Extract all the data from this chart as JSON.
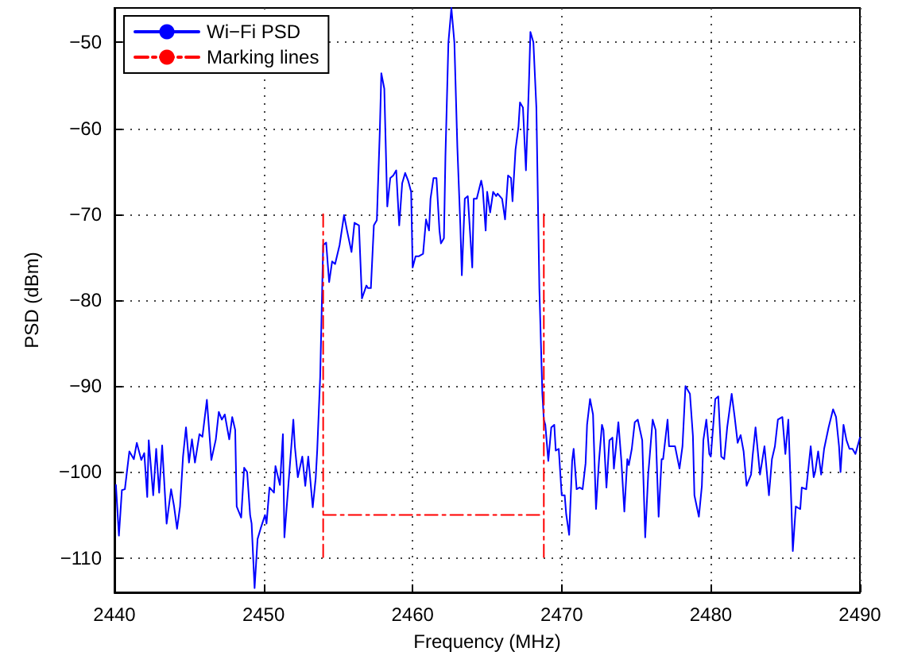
{
  "chart_data": {
    "type": "line",
    "xlabel": "Frequency (MHz)",
    "ylabel": "PSD (dBm)",
    "xlim": [
      2440,
      2490
    ],
    "ylim": [
      -114,
      -46
    ],
    "xticks": [
      2440,
      2450,
      2460,
      2470,
      2480,
      2490
    ],
    "yticks": [
      -110,
      -100,
      -90,
      -80,
      -70,
      -60,
      -50
    ],
    "grid": true,
    "legend": "top left",
    "marker": "none",
    "series": [
      {
        "name": "Wi−Fi PSD",
        "color": "#0000ff",
        "line_style": "solid",
        "x": [
          2440.1,
          2440.3,
          2440.5,
          2440.7,
          2441.0,
          2441.3,
          2441.5,
          2441.8,
          2442.0,
          2442.2,
          2442.3,
          2442.6,
          2442.8,
          2443.0,
          2443.2,
          2443.5,
          2443.8,
          2444.0,
          2444.2,
          2444.4,
          2444.6,
          2444.8,
          2445.0,
          2445.2,
          2445.4,
          2445.7,
          2445.9,
          2446.2,
          2446.5,
          2446.8,
          2447.0,
          2447.2,
          2447.4,
          2447.7,
          2447.9,
          2448.1,
          2448.2,
          2448.5,
          2448.7,
          2448.9,
          2449.1,
          2449.2,
          2449.4,
          2449.6,
          2449.8,
          2450.1,
          2450.2,
          2450.4,
          2450.7,
          2450.8,
          2451.1,
          2451.3,
          2451.4,
          2452.0,
          2452.1,
          2452.3,
          2452.6,
          2452.8,
          2453.0,
          2453.3,
          2453.5,
          2453.6,
          2453.8,
          2454.0,
          2454.2,
          2454.4,
          2454.6,
          2454.8,
          2455.1,
          2455.4,
          2455.6,
          2455.9,
          2456.1,
          2456.4,
          2456.6,
          2456.9,
          2457.0,
          2457.2,
          2457.4,
          2457.6,
          2457.8,
          2457.9,
          2458.1,
          2458.3,
          2458.5,
          2458.7,
          2458.9,
          2459.1,
          2459.3,
          2459.5,
          2459.7,
          2459.9,
          2460.0,
          2460.2,
          2460.4,
          2460.7,
          2460.9,
          2461.1,
          2461.2,
          2461.4,
          2461.6,
          2461.8,
          2461.9,
          2462.1,
          2462.2,
          2462.4,
          2462.6,
          2462.8,
          2463.0,
          2463.2,
          2463.3,
          2463.5,
          2463.7,
          2464.0,
          2464.1,
          2464.3,
          2464.6,
          2464.7,
          2464.9,
          2465.0,
          2465.2,
          2465.4,
          2465.6,
          2465.7,
          2466.0,
          2466.2,
          2466.4,
          2466.6,
          2466.7,
          2466.9,
          2467.1,
          2467.2,
          2467.4,
          2467.6,
          2467.8,
          2467.9,
          2468.1,
          2468.3,
          2468.5,
          2468.7,
          2468.8,
          2468.9,
          2469.1,
          2469.3,
          2469.5,
          2469.6,
          2469.8,
          2470.0,
          2470.2,
          2470.3,
          2470.5,
          2470.7,
          2470.8,
          2471.0,
          2471.2,
          2471.4,
          2471.6,
          2471.7,
          2471.9,
          2472.1,
          2472.3,
          2472.5,
          2472.7,
          2472.8,
          2473.0,
          2473.2,
          2473.4,
          2473.5,
          2473.8,
          2474.0,
          2474.2,
          2474.4,
          2474.5,
          2474.7,
          2474.9,
          2475.1,
          2475.4,
          2475.6,
          2475.8,
          2475.9,
          2476.1,
          2476.3,
          2476.5,
          2476.7,
          2476.8,
          2477.1,
          2477.2,
          2477.6,
          2477.9,
          2478.1,
          2478.3,
          2478.6,
          2478.8,
          2478.9,
          2479.2,
          2479.4,
          2479.5,
          2479.7,
          2479.9,
          2480.0,
          2480.3,
          2480.5,
          2480.7,
          2480.9,
          2481.1,
          2481.4,
          2481.6,
          2481.8,
          2482.0,
          2482.2,
          2482.4,
          2482.7,
          2482.8,
          2483.0,
          2483.3,
          2483.4,
          2483.6,
          2483.9,
          2484.1,
          2484.3,
          2484.5,
          2484.8,
          2485.0,
          2485.2,
          2485.4,
          2485.5,
          2485.7,
          2486.0,
          2486.1,
          2486.4,
          2486.7,
          2486.9,
          2487.0,
          2487.2,
          2487.4,
          2487.6,
          2487.9,
          2488.2,
          2488.4,
          2488.6,
          2488.7,
          2488.9,
          2489.1,
          2489.3,
          2489.5,
          2489.7,
          2490.0
        ],
        "values": [
          -101.5,
          -107.4,
          -102.1,
          -102,
          -97.6,
          -98.5,
          -96.6,
          -98.6,
          -97.8,
          -102.9,
          -96.3,
          -102.7,
          -97.3,
          -102.4,
          -96.9,
          -106,
          -102,
          -104,
          -106.6,
          -104,
          -98.2,
          -94.8,
          -98.9,
          -96.2,
          -98.9,
          -95.6,
          -95.9,
          -91.6,
          -98.6,
          -96.2,
          -93,
          -93.9,
          -93.3,
          -96.2,
          -93.6,
          -95.1,
          -104,
          -105.3,
          -99.5,
          -100,
          -105,
          -106,
          -113.5,
          -107.8,
          -106.6,
          -105,
          -106,
          -101.8,
          -102.4,
          -99.3,
          -101.5,
          -95.6,
          -107.6,
          -93.9,
          -97,
          -100.6,
          -98.2,
          -101.6,
          -98.2,
          -104.1,
          -100.7,
          -97.5,
          -88.9,
          -73.6,
          -73.3,
          -77.9,
          -75.5,
          -75.8,
          -73.6,
          -70.1,
          -71.9,
          -74.4,
          -71,
          -71.3,
          -79.8,
          -78.3,
          -78.6,
          -78.6,
          -71.3,
          -70.7,
          -60.3,
          -53.6,
          -55.4,
          -69.1,
          -65.8,
          -65.5,
          -64.9,
          -71.3,
          -66.4,
          -65.2,
          -66.1,
          -67.4,
          -76.2,
          -74.9,
          -74.9,
          -74.6,
          -70.6,
          -71.9,
          -68.2,
          -65.8,
          -65.8,
          -71.9,
          -73.4,
          -72.8,
          -63.3,
          -50,
          -46,
          -50,
          -62.2,
          -71.3,
          -77.1,
          -68.2,
          -67.9,
          -76.2,
          -68.2,
          -68.2,
          -66.1,
          -67,
          -71.9,
          -67.4,
          -69.8,
          -67.4,
          -67.9,
          -67.6,
          -68.2,
          -70.6,
          -65.5,
          -65.8,
          -68.5,
          -62.5,
          -59.8,
          -57,
          -57.6,
          -64.9,
          -54.8,
          -48.8,
          -50,
          -57.6,
          -78.6,
          -90.8,
          -93.9,
          -94.5,
          -98.7,
          -94.8,
          -94.5,
          -97.5,
          -97.3,
          -102.7,
          -102.7,
          -104.9,
          -107.3,
          -98.7,
          -97.3,
          -102,
          -101.8,
          -102,
          -99,
          -94.5,
          -91.5,
          -93.3,
          -104.3,
          -98.7,
          -94.5,
          -95.1,
          -101.8,
          -96.3,
          -96,
          -99.6,
          -94.2,
          -98.7,
          -104.6,
          -98.5,
          -99.2,
          -97.3,
          -94.2,
          -93.9,
          -96.3,
          -107.6,
          -100.3,
          -98.2,
          -93.9,
          -95.1,
          -105.2,
          -98.5,
          -98.5,
          -93.9,
          -97,
          -97,
          -99.6,
          -97,
          -90,
          -90.9,
          -95.8,
          -102.7,
          -105.2,
          -101.6,
          -96.3,
          -93.9,
          -97.9,
          -98.2,
          -91.5,
          -91.2,
          -98.2,
          -98.5,
          -94.8,
          -90.9,
          -93.6,
          -96.6,
          -95.7,
          -97.6,
          -101.6,
          -100.3,
          -98.2,
          -94.8,
          -100.3,
          -99.2,
          -97,
          -102.7,
          -98.5,
          -97,
          -93.9,
          -93.6,
          -97.9,
          -93.9,
          -103.7,
          -109.2,
          -104,
          -104.3,
          -101.8,
          -102,
          -97,
          -100.6,
          -100,
          -97.6,
          -100.3,
          -97.3,
          -94.8,
          -92.7,
          -93.6,
          -97,
          -100,
          -94.5,
          -96.3,
          -97.3,
          -97.3,
          -97.9,
          -96
        ]
      },
      {
        "name": "Marking lines",
        "color": "#ff0000",
        "line_style": "dashdot",
        "x": [
          2454,
          2454,
          null,
          2454,
          2468.8,
          null,
          2468.8,
          2468.8
        ],
        "values": [
          -70,
          -110,
          null,
          -105,
          -105,
          null,
          -70,
          -110
        ]
      }
    ]
  }
}
